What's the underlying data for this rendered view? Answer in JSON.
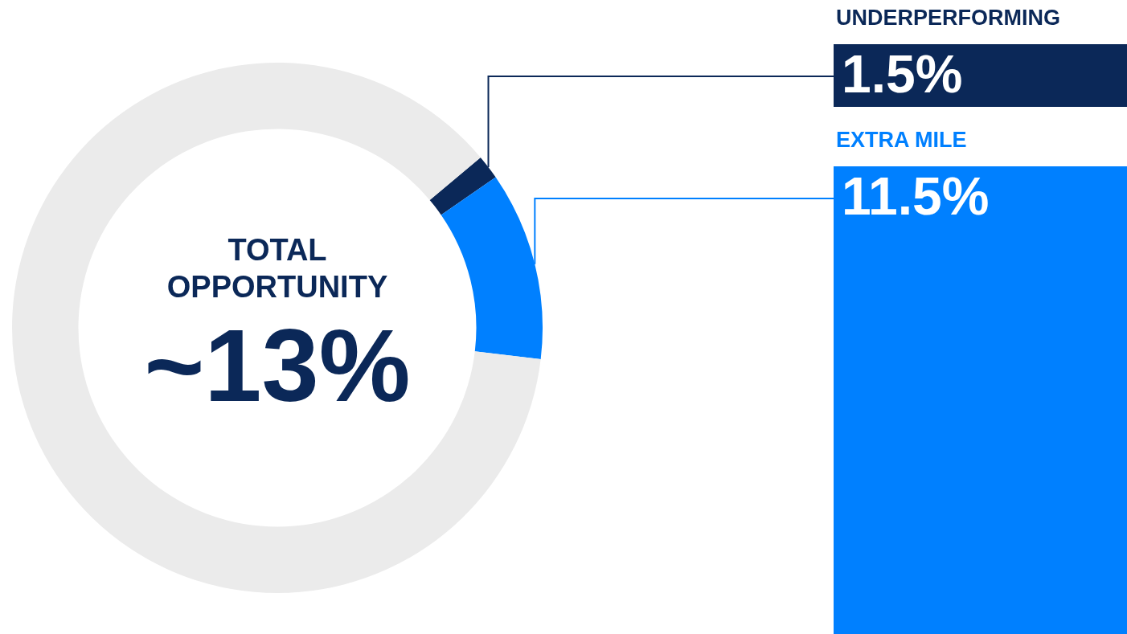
{
  "chart_data": {
    "type": "donut",
    "title": "TOTAL OPPORTUNITY",
    "annotations": [
      "~13%"
    ],
    "categories": [
      "UNDERPERFORMING",
      "EXTRA MILE",
      null
    ],
    "values": [
      1.5,
      11.5,
      87
    ],
    "colors": [
      "#0b2858",
      "#0080ff",
      "#ebebeb"
    ],
    "value_labels": [
      "1.5%",
      "11.5%",
      null
    ],
    "legend": false
  }
}
